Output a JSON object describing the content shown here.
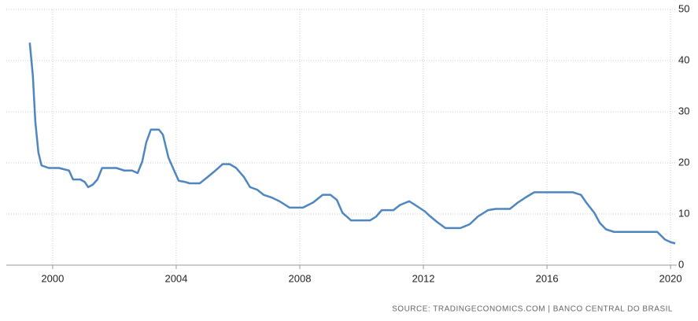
{
  "chart_data": {
    "type": "line",
    "source": "SOURCE: TRADINGECONOMICS.COM | BANCO CENTRAL DO BRASIL",
    "x": [
      1999.26,
      1999.36,
      1999.44,
      1999.54,
      1999.64,
      1999.87,
      2000.2,
      2000.53,
      2000.66,
      2000.9,
      2001.04,
      2001.15,
      2001.3,
      2001.45,
      2001.6,
      2002.06,
      2002.32,
      2002.57,
      2002.75,
      2002.9,
      2003.03,
      2003.18,
      2003.44,
      2003.57,
      2003.75,
      2003.95,
      2004.08,
      2004.3,
      2004.43,
      2004.76,
      2004.97,
      2005.22,
      2005.5,
      2005.73,
      2005.94,
      2006.19,
      2006.39,
      2006.62,
      2006.83,
      2007.08,
      2007.34,
      2007.67,
      2008.1,
      2008.43,
      2008.74,
      2008.99,
      2009.2,
      2009.38,
      2009.66,
      2010.27,
      2010.47,
      2010.65,
      2011.03,
      2011.24,
      2011.54,
      2011.8,
      2012.05,
      2012.18,
      2012.43,
      2012.71,
      2013.2,
      2013.5,
      2013.76,
      2014.09,
      2014.34,
      2014.8,
      2015.06,
      2015.31,
      2015.59,
      2016.84,
      2017.1,
      2017.27,
      2017.53,
      2017.71,
      2017.91,
      2018.17,
      2019.57,
      2019.82,
      2020.0,
      2020.15
    ],
    "values": [
      43.5,
      37,
      28,
      22,
      19.5,
      19,
      19,
      18.5,
      16.75,
      16.75,
      16.25,
      15.25,
      15.75,
      16.75,
      19,
      19,
      18.5,
      18.5,
      18,
      20.25,
      24,
      26.5,
      26.5,
      25.5,
      21,
      18.25,
      16.5,
      16.25,
      16,
      16,
      17,
      18.25,
      19.75,
      19.75,
      19,
      17.25,
      15.25,
      14.75,
      13.75,
      13.25,
      12.5,
      11.25,
      11.25,
      12.25,
      13.75,
      13.75,
      12.75,
      10.25,
      8.75,
      8.75,
      9.5,
      10.75,
      10.75,
      11.75,
      12.5,
      11.5,
      10.5,
      9.75,
      8.5,
      7.25,
      7.25,
      8,
      9.5,
      10.75,
      11,
      11,
      12.25,
      13.25,
      14.25,
      14.25,
      13.75,
      12.25,
      10.25,
      8.25,
      7,
      6.5,
      6.5,
      5,
      4.5,
      4.25
    ],
    "color": "#4f86c0",
    "xlim": [
      1998.5,
      2020.2
    ],
    "xticks": [
      2000,
      2004,
      2008,
      2012,
      2016,
      2020
    ],
    "ylim": [
      0,
      50
    ],
    "yticks": [
      0,
      10,
      20,
      30,
      40,
      50
    ],
    "grid": true
  }
}
